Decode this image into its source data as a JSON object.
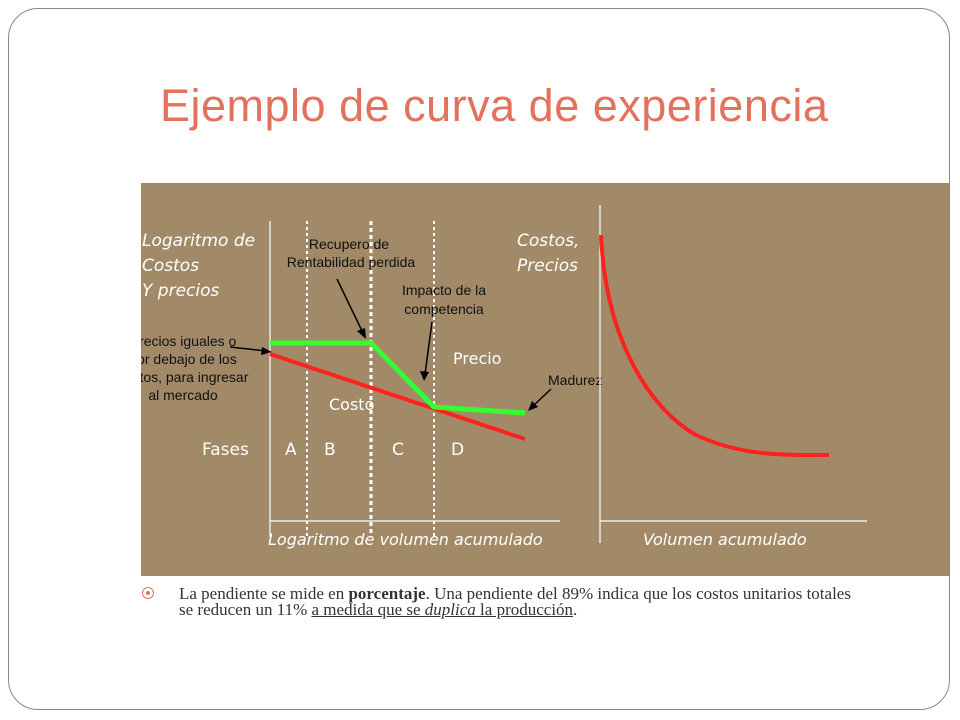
{
  "slide": {
    "title": "Ejemplo de curva de experiencia"
  },
  "diagram": {
    "background_color": "#a28a68",
    "price_color": "#33ff33",
    "cost_color": "#ff2020",
    "left_chart": {
      "y_label_lines": [
        "Logaritmo de",
        "Costos",
        "Y precios"
      ],
      "x_label": "Logaritmo de volumen acumulado",
      "price_label": "Precio",
      "cost_label": "Costo",
      "phases_label": "Fases",
      "phases": [
        "A",
        "B",
        "C",
        "D"
      ]
    },
    "right_chart": {
      "y_label_lines": [
        "Costos,",
        "Precios"
      ],
      "x_label": "Volumen acumulado"
    },
    "annotations": {
      "recupero": [
        "Recupero de",
        "Rentabilidad perdida"
      ],
      "impacto": [
        "Impacto de la",
        "competencia"
      ],
      "precios_iguales": [
        "Precios iguales o",
        "por debajo de los",
        "costos, para ingresar",
        "al mercado"
      ],
      "madurez": "Madurez"
    }
  },
  "bullet": {
    "t1": "La pendiente se mide en ",
    "t2": "porcentaje",
    "t3": ". Una pendiente del 89% indica que los costos",
    "t4": "unitarios totales se reducen un 11% ",
    "t5": "a medida que se ",
    "t6": "duplica",
    "t7": " la producción",
    "t8": "."
  }
}
